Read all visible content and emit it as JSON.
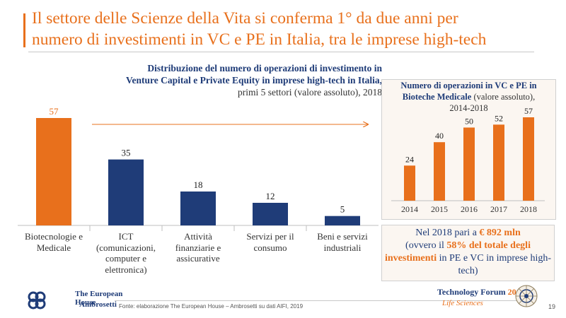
{
  "header": {
    "title_line1": "Il settore delle Scienze della Vita si conferma  1° da due anni per",
    "title_line2": "numero di investimenti in VC e PE in Italia, tra le imprese high-tech"
  },
  "main_chart": {
    "heading_bold_1": "Distribuzione del numero di operazioni di investimento in",
    "heading_bold_2": "Venture Capital e Private Equity in imprese high-tech in Italia,",
    "heading_sub": "primi 5 settori (valore assoluto), 2018"
  },
  "side_chart": {
    "heading_bold_1": "Numero di operazioni in VC e PE in",
    "heading_bold_2": "Bioteche Medicale",
    "heading_sub_inline": " (valore assoluto),",
    "heading_sub_2": "2014-2018"
  },
  "callout": {
    "part1": "Nel 2018 pari a ",
    "amount": "€ 892 mln",
    "part2": "(ovvero il ",
    "share": "58% del totale degli investimenti",
    "part3": " in PE e VC in imprese high-tech)"
  },
  "footer": {
    "logo_line1": "The European House",
    "logo_line2": "Ambrosetti",
    "source": "Fonte: elaborazione The European House – Ambrosetti su dati AIFI, 2019",
    "forum_title": "Technology Forum",
    "forum_year": "2019",
    "forum_sub": "Life Sciences",
    "page_number": "19"
  },
  "colors": {
    "orange": "#e8701c",
    "navy": "#1f3c78"
  },
  "chart_data": [
    {
      "type": "bar",
      "categories": [
        "Biotecnologie e Medicale",
        "ICT (comunicazioni, computer e elettronica)",
        "Attività finanziarie e assicurative",
        "Servizi per il consumo",
        "Beni e servizi industriali"
      ],
      "category_lines": [
        [
          "Biotecnologie e",
          "Medicale"
        ],
        [
          "ICT",
          "(comunicazioni,",
          "computer e",
          "elettronica)"
        ],
        [
          "Attività",
          "finanziarie e",
          "assicurative"
        ],
        [
          "Servizi per il",
          "consumo"
        ],
        [
          "Beni e servizi",
          "industriali"
        ]
      ],
      "values": [
        57,
        35,
        18,
        12,
        5
      ],
      "colors": [
        "#e8701c",
        "#1f3c78",
        "#1f3c78",
        "#1f3c78",
        "#1f3c78"
      ],
      "title": "Distribuzione del numero di operazioni di investimento in Venture Capital e Private Equity in imprese high-tech in Italia, primi 5 settori (valore assoluto), 2018",
      "ylim": [
        0,
        57
      ]
    },
    {
      "type": "bar",
      "categories": [
        "2014",
        "2015",
        "2016",
        "2017",
        "2018"
      ],
      "values": [
        24,
        40,
        50,
        52,
        57
      ],
      "color": "#e8701c",
      "title": "Numero di operazioni in VC e PE in Bioteche Medicale (valore assoluto), 2014-2018",
      "ylim": [
        0,
        57
      ]
    }
  ]
}
